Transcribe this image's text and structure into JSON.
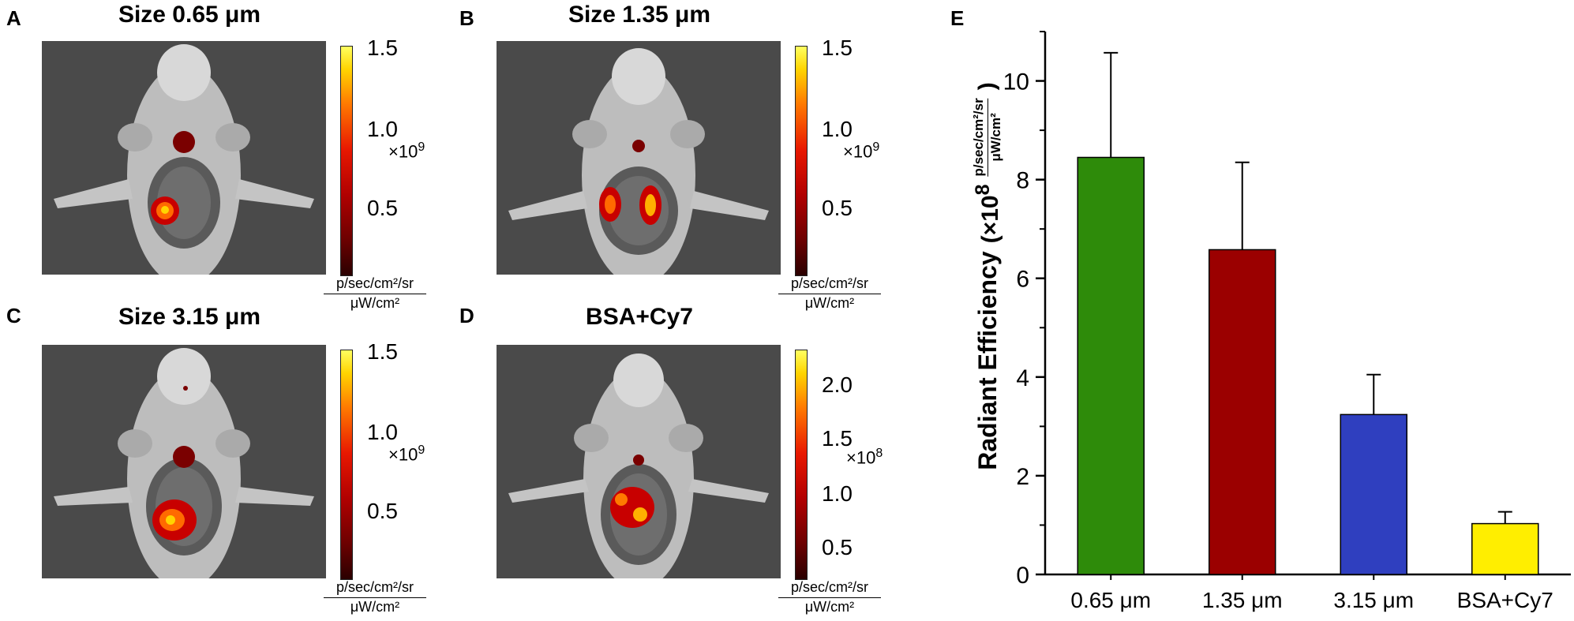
{
  "panels": [
    {
      "letter": "A",
      "title": "Size 0.65 μm",
      "ticks": [
        "1.5",
        "1.0",
        "0.5"
      ],
      "multiplier": "×10",
      "exponent": "9"
    },
    {
      "letter": "B",
      "title": "Size 1.35 μm",
      "ticks": [
        "1.5",
        "1.0",
        "0.5"
      ],
      "multiplier": "×10",
      "exponent": "9"
    },
    {
      "letter": "C",
      "title": "Size 3.15 μm",
      "ticks": [
        "1.5",
        "1.0",
        "0.5"
      ],
      "multiplier": "×10",
      "exponent": "9"
    },
    {
      "letter": "D",
      "title": "BSA+Cy7",
      "ticks": [
        "2.0",
        "1.5",
        "1.0",
        "0.5"
      ],
      "multiplier": "×10",
      "exponent": "8"
    }
  ],
  "colorbar_unit": {
    "numerator": "p/sec/cm²/sr",
    "denominator": "μW/cm²"
  },
  "chart_data": {
    "panel_letter": "E",
    "type": "bar",
    "categories": [
      "0.65 μm",
      "1.35 μm",
      "3.15 μm",
      "BSA+Cy7"
    ],
    "values": [
      8.45,
      6.58,
      3.24,
      1.03
    ],
    "errors": [
      2.12,
      1.77,
      0.81,
      0.24
    ],
    "colors": [
      "#2e8b0a",
      "#9b0000",
      "#2f3fbf",
      "#ffee00"
    ],
    "ylabel": "Radiant Efficiency",
    "ylabel_multiplier": "×10",
    "ylabel_exponent": "8",
    "ylabel_unit": {
      "numerator": "p/sec/cm²/sr",
      "denominator": "μW/cm²"
    },
    "yticks": [
      "0",
      "2",
      "4",
      "6",
      "8",
      "10"
    ],
    "ylim": [
      0,
      11
    ],
    "grid": false,
    "legend": "none"
  }
}
